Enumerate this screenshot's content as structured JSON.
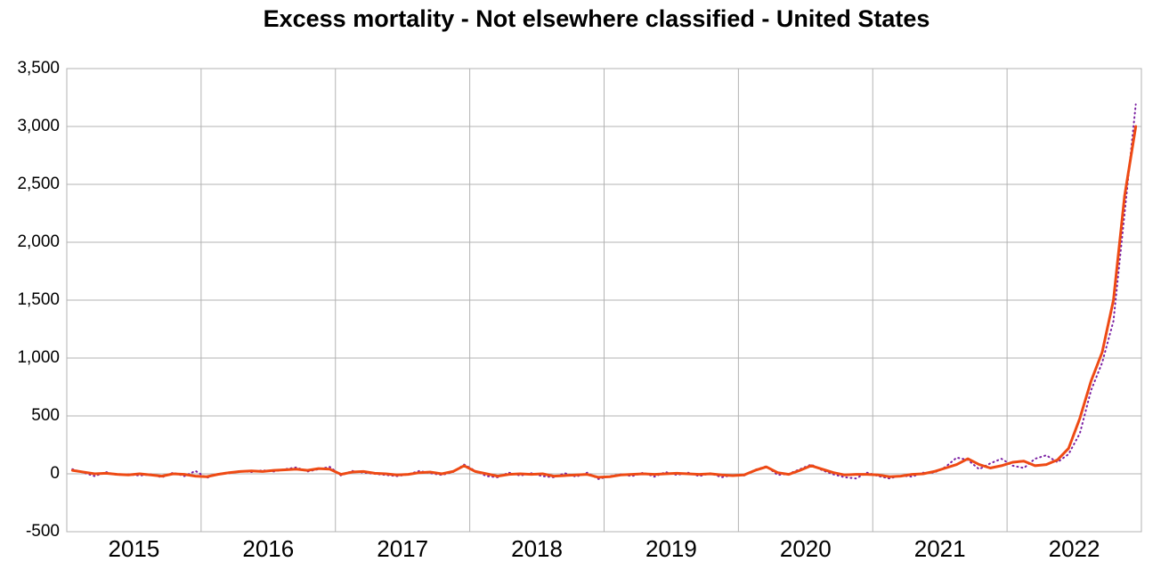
{
  "chart_data": {
    "type": "line",
    "title": "Excess mortality - Not elsewhere classified - United States",
    "x": [
      2015.042,
      2015.125,
      2015.208,
      2015.292,
      2015.375,
      2015.458,
      2015.542,
      2015.625,
      2015.708,
      2015.792,
      2015.875,
      2015.958,
      2016.042,
      2016.125,
      2016.208,
      2016.292,
      2016.375,
      2016.458,
      2016.542,
      2016.625,
      2016.708,
      2016.792,
      2016.875,
      2016.958,
      2017.042,
      2017.125,
      2017.208,
      2017.292,
      2017.375,
      2017.458,
      2017.542,
      2017.625,
      2017.708,
      2017.792,
      2017.875,
      2017.958,
      2018.042,
      2018.125,
      2018.208,
      2018.292,
      2018.375,
      2018.458,
      2018.542,
      2018.625,
      2018.708,
      2018.792,
      2018.875,
      2018.958,
      2019.042,
      2019.125,
      2019.208,
      2019.292,
      2019.375,
      2019.458,
      2019.542,
      2019.625,
      2019.708,
      2019.792,
      2019.875,
      2019.958,
      2020.042,
      2020.125,
      2020.208,
      2020.292,
      2020.375,
      2020.458,
      2020.542,
      2020.625,
      2020.708,
      2020.792,
      2020.875,
      2020.958,
      2021.042,
      2021.125,
      2021.208,
      2021.292,
      2021.375,
      2021.458,
      2021.542,
      2021.625,
      2021.708,
      2021.792,
      2021.875,
      2021.958,
      2022.042,
      2022.125,
      2022.208,
      2022.292,
      2022.375,
      2022.458,
      2022.542,
      2022.625,
      2022.708,
      2022.792,
      2022.875,
      2022.958
    ],
    "series": [
      {
        "color": "#7a1fa2",
        "style": "dotted",
        "values": [
          40,
          10,
          -20,
          15,
          -10,
          -5,
          -15,
          -5,
          -30,
          10,
          -20,
          25,
          -35,
          0,
          5,
          25,
          15,
          30,
          20,
          40,
          55,
          20,
          40,
          60,
          -15,
          25,
          10,
          0,
          -10,
          -20,
          -5,
          25,
          5,
          -10,
          15,
          80,
          25,
          -20,
          -30,
          10,
          -15,
          5,
          -20,
          -30,
          5,
          -25,
          10,
          -45,
          -20,
          -5,
          -20,
          10,
          -25,
          15,
          -10,
          10,
          -20,
          5,
          -30,
          -10,
          -15,
          35,
          65,
          -10,
          0,
          40,
          80,
          30,
          -5,
          -30,
          -40,
          10,
          -20,
          -40,
          -15,
          -25,
          10,
          10,
          60,
          140,
          120,
          40,
          90,
          130,
          70,
          50,
          130,
          160,
          100,
          170,
          350,
          720,
          960,
          1320,
          2250,
          3190
        ]
      },
      {
        "color": "#ee4a14",
        "style": "solid",
        "values": [
          30,
          15,
          0,
          5,
          -5,
          -10,
          0,
          -10,
          -20,
          0,
          -5,
          -20,
          -25,
          -5,
          10,
          20,
          25,
          20,
          30,
          35,
          40,
          30,
          45,
          40,
          -5,
          15,
          20,
          5,
          0,
          -10,
          -5,
          10,
          15,
          0,
          20,
          70,
          20,
          0,
          -20,
          -5,
          0,
          -5,
          0,
          -20,
          -15,
          -10,
          -5,
          -30,
          -25,
          -10,
          -5,
          0,
          -5,
          0,
          5,
          0,
          -5,
          0,
          -10,
          -15,
          -10,
          30,
          60,
          10,
          -5,
          30,
          70,
          40,
          10,
          -10,
          -5,
          -5,
          -10,
          -25,
          -20,
          -5,
          0,
          20,
          50,
          80,
          130,
          80,
          50,
          70,
          100,
          110,
          70,
          80,
          120,
          220,
          480,
          800,
          1050,
          1500,
          2400,
          3000
        ]
      }
    ],
    "xlim": [
      2015,
      2023
    ],
    "xticks": [
      {
        "value": 2015.5,
        "label": "2015"
      },
      {
        "value": 2016.5,
        "label": "2016"
      },
      {
        "value": 2017.5,
        "label": "2017"
      },
      {
        "value": 2018.5,
        "label": "2018"
      },
      {
        "value": 2019.5,
        "label": "2019"
      },
      {
        "value": 2020.5,
        "label": "2020"
      },
      {
        "value": 2021.5,
        "label": "2021"
      },
      {
        "value": 2022.5,
        "label": "2022"
      }
    ],
    "ylim": [
      -500,
      3500
    ],
    "yticks": [
      {
        "value": -500,
        "label": "-500"
      },
      0,
      500,
      {
        "value": 1000,
        "label": "1,000"
      },
      {
        "value": 1500,
        "label": "1,500"
      },
      {
        "value": 2000,
        "label": "2,000"
      },
      {
        "value": 2500,
        "label": "2,500"
      },
      {
        "value": 3000,
        "label": "3,000"
      },
      {
        "value": 3500,
        "label": "3,500"
      }
    ],
    "grid": true
  }
}
